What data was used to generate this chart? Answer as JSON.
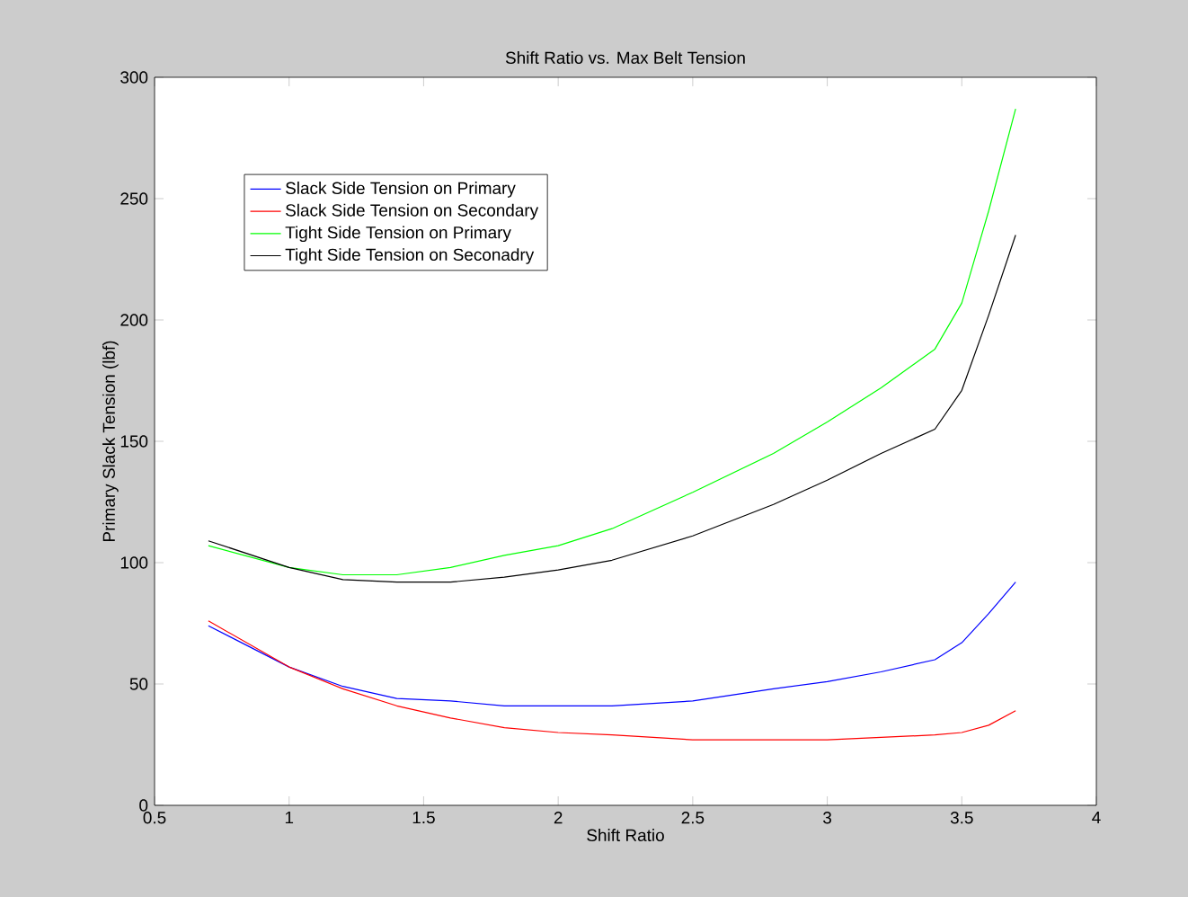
{
  "chart_data": {
    "type": "line",
    "title": "Shift Ratio vs. Max Belt Tension",
    "xlabel": "Shift Ratio",
    "ylabel": "Primary Slack Tension (lbf)",
    "x": [
      0.7,
      1.0,
      1.2,
      1.4,
      1.6,
      1.8,
      2.0,
      2.2,
      2.5,
      2.8,
      3.0,
      3.2,
      3.4,
      3.5,
      3.6,
      3.7
    ],
    "series": [
      {
        "name": "Slack Side Tension on Primary",
        "color": "#0000ff",
        "values": [
          74,
          57,
          49,
          44,
          43,
          41,
          41,
          41,
          43,
          48,
          51,
          55,
          60,
          67,
          79,
          92
        ]
      },
      {
        "name": "Slack Side Tension on Secondary",
        "color": "#ff0000",
        "values": [
          76,
          57,
          48,
          41,
          36,
          32,
          30,
          29,
          27,
          27,
          27,
          28,
          29,
          30,
          33,
          39
        ]
      },
      {
        "name": "Tight Side Tension on Primary",
        "color": "#00ff00",
        "values": [
          107,
          98,
          95,
          95,
          98,
          103,
          107,
          114,
          129,
          145,
          158,
          172,
          188,
          207,
          245,
          287
        ]
      },
      {
        "name": "Tight Side Tension on Seconadry",
        "color": "#000000",
        "values": [
          109,
          98,
          93,
          92,
          92,
          94,
          97,
          101,
          111,
          124,
          134,
          145,
          155,
          171,
          202,
          235
        ]
      }
    ],
    "xlim": [
      0.5,
      4
    ],
    "ylim": [
      0,
      300
    ],
    "xticks": [
      0.5,
      1,
      1.5,
      2,
      2.5,
      3,
      3.5,
      4
    ],
    "yticks": [
      0,
      50,
      100,
      150,
      200,
      250,
      300
    ],
    "legend": "top left",
    "grid": false,
    "marker": "none",
    "line_style": "solid"
  }
}
